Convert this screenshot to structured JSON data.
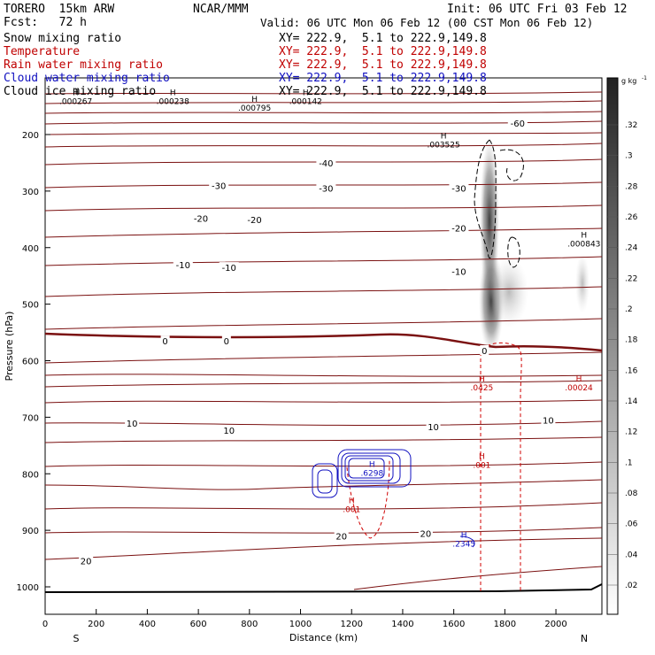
{
  "header": {
    "model": "TORERO  15km ARW",
    "center": "NCAR/MMM",
    "init": "Init: 06 UTC Fri 03 Feb 12",
    "fcst": "Fcst:   72 h",
    "valid": "Valid: 06 UTC Mon 06 Feb 12 (00 CST Mon 06 Feb 12)"
  },
  "fields": [
    {
      "name": "Snow mixing ratio",
      "xy": "XY= 222.9,  5.1 to 222.9,149.8",
      "color": "#000000"
    },
    {
      "name": "Temperature",
      "xy": "XY= 222.9,  5.1 to 222.9,149.8",
      "color": "#c00000"
    },
    {
      "name": "Rain water mixing ratio",
      "xy": "XY= 222.9,  5.1 to 222.9,149.8",
      "color": "#c00000"
    },
    {
      "name": "Cloud water mixing ratio",
      "xy": "XY= 222.9,  5.1 to 222.9,149.8",
      "color": "#1010c0"
    },
    {
      "name": "Cloud ice mixing ratio",
      "xy": "XY= 222.9,  5.1 to 222.9,149.8",
      "color": "#000000"
    }
  ],
  "chart_data": {
    "type": "cross-section",
    "xlabel": "Distance (km)",
    "ylabel": "Pressure (hPa)",
    "xlim": [
      0,
      2180
    ],
    "ylim": [
      1050,
      125
    ],
    "xticks": [
      0,
      200,
      400,
      600,
      800,
      1000,
      1200,
      1400,
      1600,
      1800,
      2000
    ],
    "yticks": [
      200,
      300,
      400,
      500,
      600,
      700,
      800,
      900,
      1000
    ],
    "x_end_labels": {
      "left": "S",
      "right": "N"
    },
    "colorbar": {
      "units": "g kg-1",
      "labels": [
        ".32",
        ".3",
        ".28",
        ".26",
        ".24",
        ".22",
        ".2",
        ".18",
        ".16",
        ".14",
        ".12",
        ".1",
        ".08",
        ".06",
        ".04",
        ".02"
      ]
    },
    "temperature_labels": [
      {
        "text": "-60",
        "x": 1850,
        "p": 180
      },
      {
        "text": "-40",
        "x": 1100,
        "p": 250
      },
      {
        "text": "-30",
        "x": 680,
        "p": 290
      },
      {
        "text": "-30",
        "x": 1100,
        "p": 295
      },
      {
        "text": "-30",
        "x": 1620,
        "p": 295
      },
      {
        "text": "-20",
        "x": 610,
        "p": 348
      },
      {
        "text": "-20",
        "x": 820,
        "p": 350
      },
      {
        "text": "-20",
        "x": 1620,
        "p": 365
      },
      {
        "text": "-10",
        "x": 540,
        "p": 430
      },
      {
        "text": "-10",
        "x": 720,
        "p": 435
      },
      {
        "text": "-10",
        "x": 1620,
        "p": 442
      },
      {
        "text": "0",
        "x": 470,
        "p": 565
      },
      {
        "text": "0",
        "x": 710,
        "p": 565
      },
      {
        "text": "0",
        "x": 1720,
        "p": 582
      },
      {
        "text": "10",
        "x": 340,
        "p": 710
      },
      {
        "text": "10",
        "x": 720,
        "p": 723
      },
      {
        "text": "10",
        "x": 1520,
        "p": 717
      },
      {
        "text": "10",
        "x": 1970,
        "p": 705
      },
      {
        "text": "20",
        "x": 1160,
        "p": 910
      },
      {
        "text": "20",
        "x": 1490,
        "p": 905
      },
      {
        "text": "20",
        "x": 160,
        "p": 954
      }
    ],
    "maxima": [
      {
        "mark": "H",
        "value": ".003525",
        "x": 1560,
        "p": 207,
        "color": "#000000"
      },
      {
        "mark": "H",
        "value": ".000843",
        "x": 2110,
        "p": 382,
        "color": "#000000"
      },
      {
        "mark": "H",
        "value": ".0425",
        "x": 1710,
        "p": 637,
        "color": "#c00000"
      },
      {
        "mark": "H",
        "value": ".00024",
        "x": 2090,
        "p": 637,
        "color": "#c00000"
      },
      {
        "mark": "H",
        "value": ".001",
        "x": 1710,
        "p": 774,
        "color": "#c00000"
      },
      {
        "mark": "H",
        "value": ".001",
        "x": 1200,
        "p": 852,
        "color": "#c00000"
      },
      {
        "mark": "H",
        "value": ".2345",
        "x": 1640,
        "p": 913,
        "color": "#1010c0"
      },
      {
        "mark": "H",
        "value": ".6298",
        "x": 1280,
        "p": 788,
        "color": "#1010c0"
      },
      {
        "mark": "H",
        "value": ".000267",
        "x": 120,
        "p": 130,
        "color": "#000000"
      },
      {
        "mark": "H",
        "value": ".000238",
        "x": 500,
        "p": 130,
        "color": "#000000"
      },
      {
        "mark": "H",
        "value": ".000795",
        "x": 820,
        "p": 142,
        "color": "#000000"
      },
      {
        "mark": "H",
        "value": ".000142",
        "x": 1020,
        "p": 130,
        "color": "#000000"
      }
    ]
  }
}
